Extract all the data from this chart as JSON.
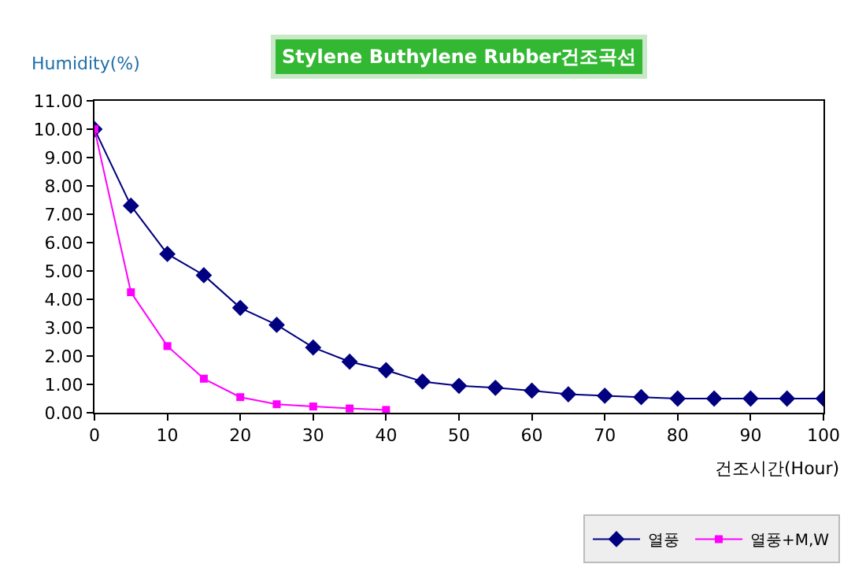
{
  "chart_data": {
    "type": "line",
    "title": "Stylene Buthylene Rubber건조곡선",
    "xlabel": "건조시간(Hour)",
    "ylabel": "Humidity(%)",
    "x": [
      0,
      5,
      10,
      15,
      20,
      25,
      30,
      35,
      40,
      45,
      50,
      55,
      60,
      65,
      70,
      75,
      80,
      85,
      90,
      95,
      100
    ],
    "series": [
      {
        "name": "열풍",
        "color": "#000080",
        "marker": "diamond",
        "values": [
          10,
          7.3,
          5.6,
          4.85,
          3.7,
          3.1,
          2.3,
          1.8,
          1.5,
          1.1,
          0.95,
          0.88,
          0.78,
          0.65,
          0.6,
          0.55,
          0.5,
          0.5,
          0.5,
          0.5,
          0.5
        ]
      },
      {
        "name": "열풍+M,W",
        "color": "#ff00ff",
        "marker": "square",
        "x": [
          0,
          5,
          10,
          15,
          20,
          25,
          30,
          35,
          40
        ],
        "values": [
          10,
          4.25,
          2.35,
          1.2,
          0.55,
          0.3,
          0.22,
          0.15,
          0.1
        ]
      }
    ],
    "xlim": [
      0,
      100
    ],
    "xticks": [
      0,
      10,
      20,
      30,
      40,
      50,
      60,
      70,
      80,
      90,
      100
    ],
    "ylim": [
      0,
      11
    ],
    "yticks": [
      {
        "value": 0,
        "label": "0.00"
      },
      {
        "value": 1,
        "label": "1.00"
      },
      {
        "value": 2,
        "label": "2.00"
      },
      {
        "value": 3,
        "label": "3.00"
      },
      {
        "value": 4,
        "label": "4.00"
      },
      {
        "value": 5,
        "label": "5.00"
      },
      {
        "value": 6,
        "label": "6.00"
      },
      {
        "value": 7,
        "label": "7.00"
      },
      {
        "value": 8,
        "label": "8.00"
      },
      {
        "value": 9,
        "label": "9.00"
      },
      {
        "value": 10,
        "label": "10.00"
      },
      {
        "value": 11,
        "label": "11.00"
      }
    ],
    "legend": "bottom right",
    "line_style": "solid"
  }
}
